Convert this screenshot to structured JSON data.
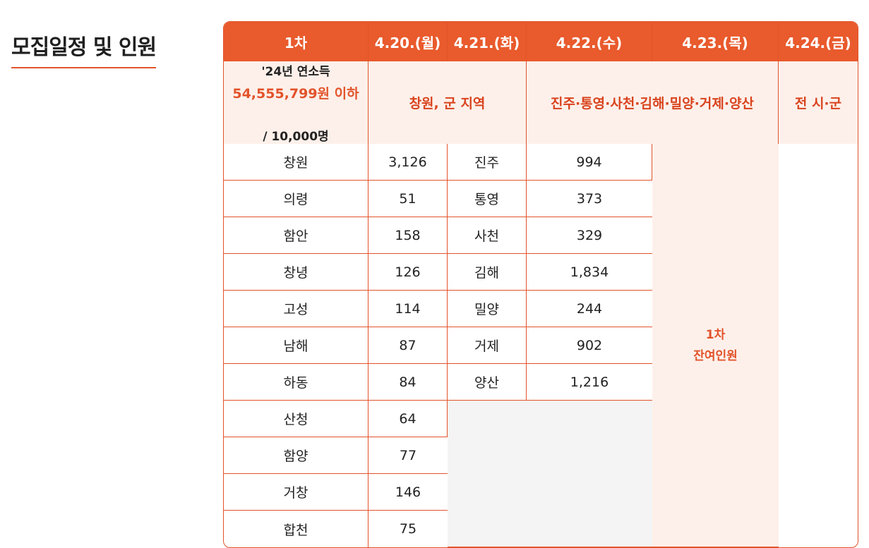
{
  "section": {
    "title": "모집일정 및 인원"
  },
  "header": {
    "round": "1차",
    "dates": [
      "4.20.(월)",
      "4.21.(화)",
      "4.22.(수)",
      "4.23.(목)",
      "4.24.(금)"
    ]
  },
  "subheader": {
    "group1": "창원, 군 지역",
    "group2": "진주·통영·사천·김해·밀양·거제·양산",
    "group3": "전 시·군"
  },
  "income": {
    "label": "'24년 연소득",
    "amount": "54,555,799원 이하",
    "quota": "/ 10,000명"
  },
  "remaining": {
    "line1": "1차",
    "line2": "잔여인원"
  },
  "group1_rows": [
    {
      "region": "창원",
      "count": "3,126"
    },
    {
      "region": "의령",
      "count": "51"
    },
    {
      "region": "함안",
      "count": "158"
    },
    {
      "region": "창녕",
      "count": "126"
    },
    {
      "region": "고성",
      "count": "114"
    },
    {
      "region": "남해",
      "count": "87"
    },
    {
      "region": "하동",
      "count": "84"
    },
    {
      "region": "산청",
      "count": "64"
    },
    {
      "region": "함양",
      "count": "77"
    },
    {
      "region": "거창",
      "count": "146"
    },
    {
      "region": "합천",
      "count": "75"
    }
  ],
  "group2_rows": [
    {
      "region": "진주",
      "count": "994"
    },
    {
      "region": "통영",
      "count": "373"
    },
    {
      "region": "사천",
      "count": "329"
    },
    {
      "region": "김해",
      "count": "1,834"
    },
    {
      "region": "밀양",
      "count": "244"
    },
    {
      "region": "거제",
      "count": "902"
    },
    {
      "region": "양산",
      "count": "1,216"
    }
  ],
  "colors": {
    "accent": "#e95a2c",
    "accent_light": "#fdf0ea",
    "empty": "#f4f4f4"
  }
}
